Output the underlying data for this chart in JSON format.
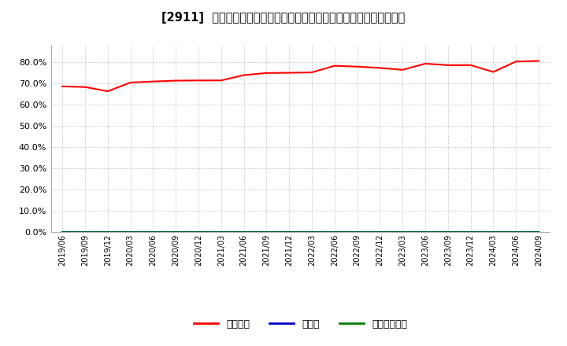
{
  "title": "[2911]  自己資本、のれん、繰延税金資産の総資産に対する比率の推移",
  "x_labels": [
    "2019/06",
    "2019/09",
    "2019/12",
    "2020/03",
    "2020/06",
    "2020/09",
    "2020/12",
    "2021/03",
    "2021/06",
    "2021/09",
    "2021/12",
    "2022/03",
    "2022/06",
    "2022/09",
    "2022/12",
    "2023/03",
    "2023/06",
    "2023/09",
    "2023/12",
    "2024/03",
    "2024/06",
    "2024/09"
  ],
  "equity_ratio": [
    68.5,
    68.2,
    66.2,
    70.3,
    70.8,
    71.2,
    71.3,
    71.3,
    73.8,
    74.8,
    74.9,
    75.1,
    78.2,
    77.8,
    77.2,
    76.3,
    79.2,
    78.5,
    78.5,
    75.3,
    80.2,
    80.5
  ],
  "noren_ratio": [
    0.0,
    0.0,
    0.0,
    0.0,
    0.0,
    0.0,
    0.0,
    0.0,
    0.0,
    0.0,
    0.0,
    0.0,
    0.0,
    0.0,
    0.0,
    0.0,
    0.0,
    0.0,
    0.0,
    0.0,
    0.0,
    0.0
  ],
  "deferred_tax_ratio": [
    0.0,
    0.0,
    0.0,
    0.0,
    0.0,
    0.0,
    0.0,
    0.0,
    0.0,
    0.0,
    0.0,
    0.0,
    0.0,
    0.0,
    0.0,
    0.0,
    0.0,
    0.0,
    0.0,
    0.0,
    0.0,
    0.0
  ],
  "equity_color": "#ff0000",
  "noren_color": "#0000cc",
  "deferred_tax_color": "#008000",
  "ylim": [
    0.0,
    88.0
  ],
  "yticks": [
    0.0,
    10.0,
    20.0,
    30.0,
    40.0,
    50.0,
    60.0,
    70.0,
    80.0
  ],
  "legend_labels": [
    "自己資本",
    "のれん",
    "繰延税金資産"
  ],
  "background_color": "#ffffff",
  "plot_bg_color": "#ffffff",
  "grid_color": "#aaaaaa"
}
